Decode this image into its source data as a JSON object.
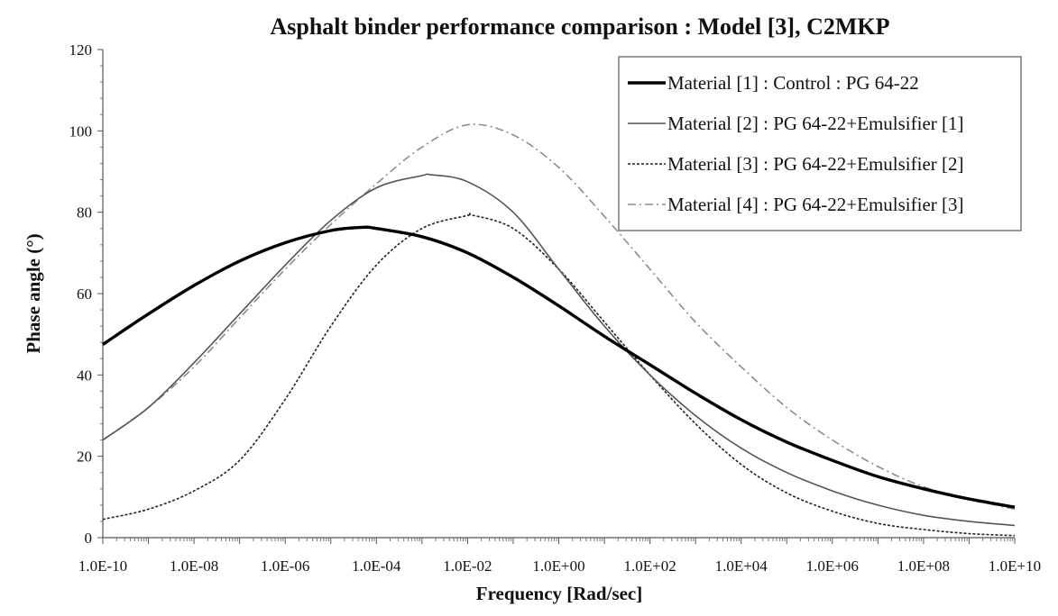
{
  "chart_data": {
    "type": "line",
    "title": "Asphalt binder performance comparison : Model [3], C2MKP",
    "xlabel": "Frequency [Rad/sec]",
    "ylabel": "Phase angle (°)",
    "xscale": "log10",
    "xlim_exp": [
      -10,
      10
    ],
    "ylim": [
      0,
      120
    ],
    "grid": false,
    "legend_position": "top-right",
    "x_tick_labels": [
      "1.0E-10",
      "1.0E-08",
      "1.0E-06",
      "1.0E-04",
      "1.0E-02",
      "1.0E+00",
      "1.0E+02",
      "1.0E+04",
      "1.0E+06",
      "1.0E+08",
      "1.0E+10"
    ],
    "y_tick_labels": [
      "0",
      "20",
      "40",
      "60",
      "80",
      "100",
      "120"
    ],
    "series": [
      {
        "name": "Material [1] : Control : PG 64-22",
        "style": "solid-thick",
        "color": "#000000",
        "log_x": [
          -10,
          -9,
          -8,
          -7,
          -6,
          -5,
          -4.3,
          -4,
          -3,
          -2,
          -1,
          0,
          1,
          2,
          3,
          4,
          5,
          6,
          7,
          8,
          9,
          10
        ],
        "y": [
          47.5,
          55,
          62,
          68,
          72.5,
          75.5,
          76.3,
          76,
          74,
          70,
          64,
          57,
          49.5,
          42.5,
          35.5,
          29,
          23.5,
          19,
          15,
          12,
          9.5,
          7.5
        ]
      },
      {
        "name": "Material [2] : PG 64-22+Emulsifier [1]",
        "style": "solid-thin",
        "color": "#555555",
        "log_x": [
          -10,
          -9,
          -8,
          -7,
          -6,
          -5,
          -4,
          -3,
          -2.8,
          -2,
          -1,
          0,
          1,
          2,
          3,
          4,
          5,
          6,
          7,
          8,
          9,
          10
        ],
        "y": [
          24,
          32,
          43,
          55,
          67,
          78,
          86,
          89,
          89.2,
          87.5,
          80,
          66,
          52,
          40,
          30,
          22,
          16,
          11.5,
          8,
          5.5,
          4,
          3
        ]
      },
      {
        "name": "Material [3] : PG 64-22+Emulsifier [2]",
        "style": "short-dash",
        "color": "#222222",
        "log_x": [
          -10,
          -9,
          -8,
          -7,
          -6,
          -5,
          -4,
          -3,
          -2,
          -1.9,
          -1,
          0,
          1,
          2,
          3,
          4,
          5,
          6,
          7,
          8,
          9,
          10
        ],
        "y": [
          4.5,
          7,
          11.5,
          19,
          34,
          52,
          67,
          76,
          79.2,
          79.3,
          76,
          66,
          53,
          40,
          28,
          18,
          11,
          6.5,
          3.5,
          2,
          1,
          0.5
        ]
      },
      {
        "name": "Material [4] : PG 64-22+Emulsifier [3]",
        "style": "dash-dot",
        "color": "#8c8c8c",
        "log_x": [
          -10,
          -9,
          -8,
          -7,
          -6,
          -5,
          -4,
          -3,
          -2,
          -1,
          0,
          1,
          2,
          3,
          4,
          5,
          6,
          7,
          8,
          9,
          10
        ],
        "y": [
          24,
          32,
          42,
          54,
          66,
          77,
          87,
          96,
          101.5,
          99,
          91,
          79,
          66,
          53,
          42,
          32,
          24,
          17.5,
          12.5,
          9.5,
          7
        ]
      }
    ]
  }
}
